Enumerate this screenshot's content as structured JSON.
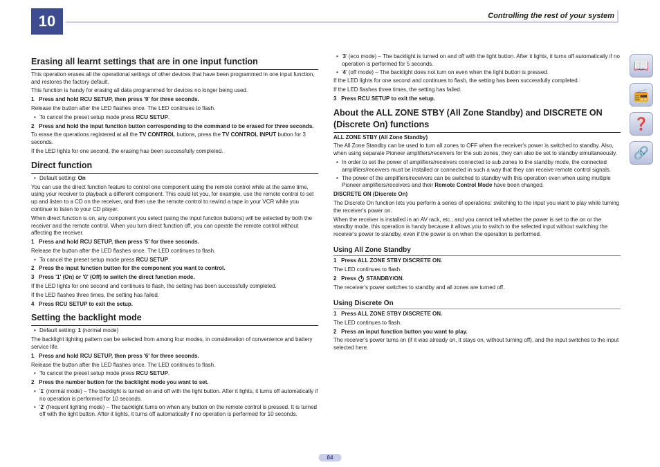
{
  "chapter": "10",
  "header_title": "Controlling the rest of your system",
  "page_number": "84",
  "colors": {
    "accent": "#3d4b8f",
    "accent_light": "#c8cde8",
    "icon_grad_top": "#e8ecf5",
    "icon_grad_bottom": "#b8c0dd"
  },
  "left": {
    "h1": "Erasing all learnt settings that are in one input function",
    "p1": "This operation erases all the operational settings of other devices that have been programmed in one input function, and restores the factory default.",
    "p2": "This function is handy for erasing all data programmed for devices no longer being used.",
    "s1": "Press and hold RCU SETUP, then press '9' for three seconds.",
    "s1_note": "Release the button after the LED flashes once. The LED continues to flash.",
    "s1_b1": "To cancel the preset setup mode press ",
    "s1_b1_bold": "RCU SETUP",
    "s2": "Press and hold the input function button corresponding to the command to be erased for three seconds.",
    "s2_note_a": "To erase the operations registered at all the ",
    "s2_note_b": "TV CONTROL",
    "s2_note_c": " buttons, press the ",
    "s2_note_d": "TV CONTROL INPUT",
    "s2_note_e": " button for 3 seconds.",
    "s2_note2": "If the LED lights for one second, the erasing has been successfully completed.",
    "h2": "Direct function",
    "df_b1a": "Default setting: ",
    "df_b1b": "On",
    "df_p1": "You can use the direct function feature to control one component using the remote control while at the same time, using your receiver to playback a different component. This could let you, for example, use the remote control to set up and listen to a CD on the receiver, and then use the remote control to rewind a tape in your VCR while you continue to listen to your CD player.",
    "df_p2": "When direct function is on, any component you select (using the input function buttons) will be selected by both the receiver and the remote control. When you turn direct function off, you can operate the remote control without affecting the receiver.",
    "df_s1": "Press and hold RCU SETUP, then press '5' for three seconds.",
    "df_s1_note": "Release the button after the LED flashes once. The LED continues to flash.",
    "df_s1_b1": "To cancel the preset setup mode press ",
    "df_s2": "Press the input function button for the component you want to control.",
    "df_s3": "Press '1' (On) or '0' (Off) to switch the direct function mode.",
    "df_s3_note1": "If the LED lights for one second and continues to flash, the setting has been successfully completed.",
    "df_s3_note2": "If the LED flashes three times, the setting has failed.",
    "df_s4": "Press RCU SETUP to exit the setup.",
    "h3": "Setting the backlight mode",
    "bl_b1a": "Default setting: ",
    "bl_b1b": "1",
    "bl_b1c": " (normal mode)",
    "bl_p1": "The backlight lighting pattern can be selected from among four modes, in consideration of convenience and battery service life.",
    "bl_s1": "Press and hold RCU SETUP, then press '6' for three seconds.",
    "bl_s1_note": "Release the button after the LED flashes once. The LED continues to flash.",
    "bl_s1_b1": "To cancel the preset setup mode press ",
    "bl_s2": "Press the number button for the backlight mode you want to set.",
    "bl_m1a": "'",
    "bl_m1b": "1",
    "bl_m1c": "' (normal mode) – The backlight is turned on and off with the light button. After it lights, it turns off automatically if no operation is performed for 10 seconds.",
    "bl_m2a": "'",
    "bl_m2b": "2",
    "bl_m2c": "' (frequent lighting mode) – The backlight turns on when any button on the remote control is pressed. It is turned off with the light button. After it lights, it turns off automatically if no operation is performed for 10 seconds."
  },
  "right": {
    "bl_m3a": "'",
    "bl_m3b": "3",
    "bl_m3c": "' (eco mode) – The backlight is turned on and off with the light button. After it lights, it turns off automatically if no operation is performed for 5 seconds.",
    "bl_m4a": "'",
    "bl_m4b": "4",
    "bl_m4c": "' (off mode) – The backlight does not turn on even when the light button is pressed.",
    "bl_note1": "If the LED lights for one second and continues to flash, the setting has been successfully completed.",
    "bl_note2": "If the LED flashes three times, the setting has failed.",
    "bl_s3": "Press RCU SETUP to exit the setup.",
    "h1": "About the ALL ZONE STBY (All Zone Standby) and DISCRETE ON (Discrete On) functions",
    "az_t": "ALL ZONE STBY (All Zone Standby)",
    "az_p1": "The All Zone Standby can be used to turn all zones to OFF when the receiver's power is switched to standby. Also, when using separate Pioneer amplifiers/receivers for the sub zones, they can also be set to standby simultaneously.",
    "az_b1": "In order to set the power of amplifiers/receivers connected to sub zones to the standby mode, the connected amplifiers/receivers must be installed or connected in such a way that they can receive remote control signals.",
    "az_b2a": "The power of the amplifiers/receivers can be switched to standby with this operation even when using multiple Pioneer amplifiers/receivers and their ",
    "az_b2b": "Remote Control Mode",
    "az_b2c": " have been changed.",
    "do_t": "DISCRETE ON (Discrete On)",
    "do_p1": "The Discrete On function lets you perform a series of operations: switching to the input you want to play while turning the receiver's power on.",
    "do_p2": "When the receiver is installed in an AV rack, etc., and you cannot tell whether the power is set to the on or the standby mode, this operation is handy because it allows you to switch to the selected input without switching the receiver's power to standby, even if the power is on when the operation is performed.",
    "h2": "Using All Zone Standby",
    "uaz_s1": "Press ALL ZONE STBY DISCRETE ON.",
    "uaz_s1_note": "The LED continues to flash.",
    "uaz_s2a": "Press ",
    "uaz_s2b": " STANDBY/ON.",
    "uaz_s2_note": "The receiver's power switches to standby and all zones are turned off.",
    "h3": "Using Discrete On",
    "udo_s1": "Press ALL ZONE STBY DISCRETE ON.",
    "udo_s1_note": "The LED continues to flash.",
    "udo_s2": "Press an input function button you want to play.",
    "udo_s2_note": "The receiver's power turns on (if it was already on, it stays on, without turning off), and the input switches to the input selected here."
  },
  "icons": [
    "book-icon",
    "device-icon",
    "help-icon",
    "network-icon"
  ]
}
